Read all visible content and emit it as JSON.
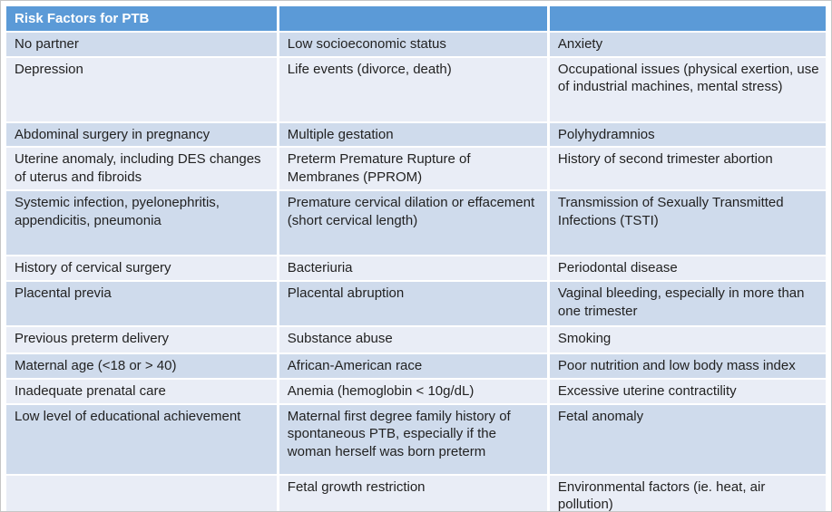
{
  "table": {
    "title": "Risk Factors for PTB",
    "columns": [
      "",
      "",
      ""
    ],
    "rows": [
      [
        "No partner",
        "Low socioeconomic status",
        "Anxiety"
      ],
      [
        "Depression",
        "Life events (divorce, death)",
        "Occupational issues (physical exertion, use of industrial machines, mental stress)"
      ],
      [
        "Abdominal surgery in pregnancy",
        "Multiple gestation",
        "Polyhydramnios"
      ],
      [
        "Uterine anomaly, including DES changes of uterus and fibroids",
        "Preterm Premature Rupture of Membranes (PPROM)",
        "History of second trimester abortion"
      ],
      [
        "Systemic infection, pyelonephritis, appendicitis, pneumonia",
        "Premature cervical dilation or effacement (short cervical length)",
        "Transmission of Sexually Transmitted Infections (TSTI)"
      ],
      [
        "History of cervical surgery",
        "Bacteriuria",
        "Periodontal disease"
      ],
      [
        "Placental previa",
        "Placental abruption",
        "Vaginal bleeding, especially in more than one trimester"
      ],
      [
        "Previous preterm delivery",
        "Substance abuse",
        "Smoking"
      ],
      [
        "Maternal age (<18 or > 40)",
        "African-American race",
        "Poor nutrition and low body mass index"
      ],
      [
        "Inadequate prenatal care",
        "Anemia (hemoglobin < 10g/dL)",
        "Excessive uterine contractility"
      ],
      [
        "Low level of educational achievement",
        "Maternal first degree family history of spontaneous PTB, especially if the woman herself was born preterm",
        "Fetal anomaly"
      ],
      [
        "",
        "Fetal growth restriction",
        "Environmental factors (ie. heat, air pollution)"
      ]
    ],
    "colors": {
      "header_bg": "#5b9ad7",
      "header_text": "#ffffff",
      "band_dark": "#cfdbec",
      "band_light": "#e9edf6",
      "grid": "#ffffff",
      "text": "#222222"
    }
  }
}
